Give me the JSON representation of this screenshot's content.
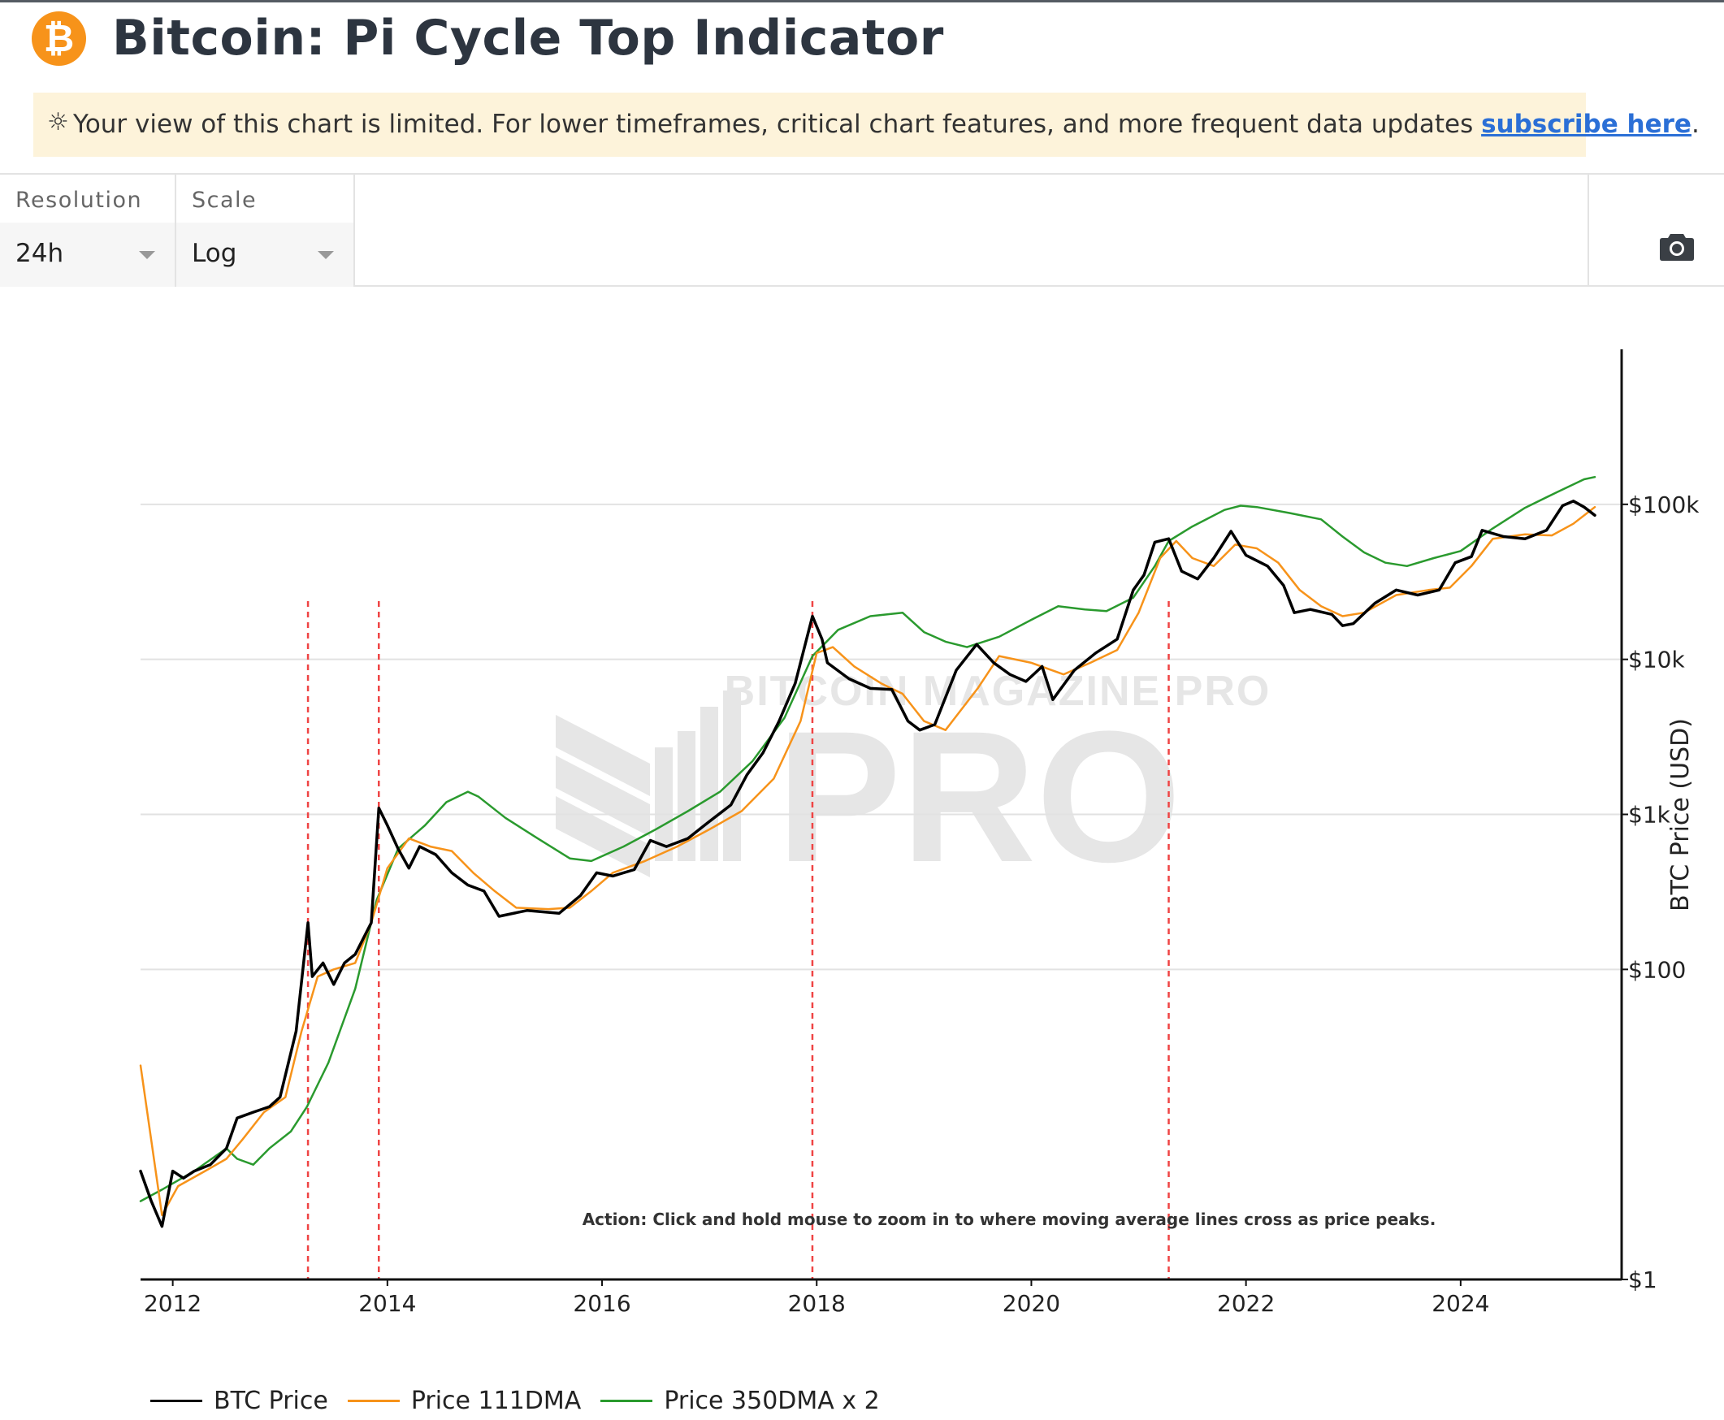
{
  "header": {
    "logo_glyph": "₿",
    "title": "Bitcoin: Pi Cycle Top Indicator",
    "brand_color": "#f7931a"
  },
  "banner": {
    "icon": "☼",
    "text": "Your view of this chart is limited. For lower timeframes, critical chart features, and more frequent data updates ",
    "link_text": "subscribe here",
    "suffix": "."
  },
  "controls": {
    "resolution": {
      "label": "Resolution",
      "value": "24h"
    },
    "scale": {
      "label": "Scale",
      "value": "Log"
    },
    "camera_icon": "camera-icon"
  },
  "chart_data": {
    "type": "line",
    "xlabel": "",
    "ylabel": "BTC Price (USD)",
    "y_scale": "log",
    "ylim": [
      1,
      1000000
    ],
    "y_tick_values": [
      1,
      100,
      1000,
      10000,
      100000
    ],
    "y_tick_labels": [
      "$1",
      "$100",
      "$1k",
      "$10k",
      "$100k"
    ],
    "x_tick_labels": [
      "2012",
      "2014",
      "2016",
      "2018",
      "2020",
      "2022",
      "2024"
    ],
    "xlim": [
      2011.7,
      2025.5
    ],
    "grid": true,
    "legend_position": "bottom-left",
    "annotation": "Action: Click and hold mouse to zoom in to where moving average lines cross as price peaks.",
    "watermark": "BITCOIN MAGAZINE PRO",
    "cross_events": [
      2013.26,
      2013.92,
      2017.96,
      2021.28
    ],
    "series": [
      {
        "name": "BTC Price",
        "color": "#000000",
        "x": [
          2011.7,
          2011.8,
          2011.9,
          2012.0,
          2012.1,
          2012.2,
          2012.35,
          2012.5,
          2012.6,
          2012.75,
          2012.9,
          2013.0,
          2013.15,
          2013.26,
          2013.3,
          2013.4,
          2013.5,
          2013.6,
          2013.7,
          2013.85,
          2013.92,
          2014.0,
          2014.1,
          2014.2,
          2014.3,
          2014.45,
          2014.6,
          2014.75,
          2014.9,
          2015.04,
          2015.3,
          2015.6,
          2015.8,
          2015.95,
          2016.1,
          2016.3,
          2016.45,
          2016.6,
          2016.8,
          2017.0,
          2017.2,
          2017.35,
          2017.5,
          2017.65,
          2017.8,
          2017.96,
          2018.05,
          2018.1,
          2018.3,
          2018.5,
          2018.7,
          2018.85,
          2018.96,
          2019.1,
          2019.3,
          2019.49,
          2019.65,
          2019.8,
          2019.95,
          2020.1,
          2020.2,
          2020.4,
          2020.6,
          2020.8,
          2020.95,
          2021.05,
          2021.15,
          2021.28,
          2021.4,
          2021.55,
          2021.7,
          2021.86,
          2022.0,
          2022.2,
          2022.35,
          2022.45,
          2022.6,
          2022.8,
          2022.9,
          2023.0,
          2023.2,
          2023.4,
          2023.6,
          2023.8,
          2023.95,
          2024.1,
          2024.2,
          2024.4,
          2024.6,
          2024.8,
          2024.95,
          2025.05,
          2025.15,
          2025.25
        ],
        "y": [
          5,
          3.2,
          2.2,
          5,
          4.5,
          5,
          5.5,
          7,
          11,
          12,
          13,
          15,
          40,
          200,
          90,
          110,
          80,
          110,
          125,
          200,
          1100,
          850,
          600,
          450,
          620,
          550,
          420,
          350,
          320,
          220,
          240,
          230,
          300,
          420,
          400,
          440,
          680,
          620,
          700,
          900,
          1150,
          1800,
          2500,
          4000,
          7000,
          19000,
          13500,
          9500,
          7500,
          6500,
          6400,
          4000,
          3500,
          3800,
          8500,
          12500,
          9500,
          8000,
          7200,
          9000,
          5500,
          8500,
          11000,
          13500,
          28000,
          35000,
          57000,
          60000,
          37000,
          33000,
          45000,
          67000,
          47000,
          40000,
          30000,
          20000,
          21000,
          19500,
          16500,
          17000,
          23000,
          28000,
          26000,
          28000,
          42000,
          46000,
          68000,
          62000,
          60000,
          68000,
          98000,
          105000,
          96000,
          85000
        ]
      },
      {
        "name": "Price 111DMA",
        "color": "#f7931a",
        "x": [
          2011.7,
          2011.9,
          2012.05,
          2012.3,
          2012.5,
          2012.65,
          2012.85,
          2013.05,
          2013.2,
          2013.35,
          2013.5,
          2013.7,
          2013.85,
          2014.0,
          2014.2,
          2014.4,
          2014.6,
          2014.8,
          2015.0,
          2015.2,
          2015.5,
          2015.7,
          2015.9,
          2016.1,
          2016.4,
          2016.7,
          2017.0,
          2017.3,
          2017.6,
          2017.85,
          2018.0,
          2018.15,
          2018.35,
          2018.6,
          2018.8,
          2019.0,
          2019.2,
          2019.5,
          2019.7,
          2020.0,
          2020.3,
          2020.55,
          2020.8,
          2021.0,
          2021.2,
          2021.35,
          2021.5,
          2021.7,
          2021.9,
          2022.1,
          2022.3,
          2022.5,
          2022.7,
          2022.9,
          2023.1,
          2023.4,
          2023.7,
          2023.9,
          2024.1,
          2024.3,
          2024.6,
          2024.85,
          2025.05,
          2025.25
        ],
        "y": [
          24,
          2.6,
          4,
          5,
          6,
          8,
          12,
          15,
          40,
          90,
          100,
          110,
          200,
          450,
          700,
          620,
          580,
          420,
          320,
          250,
          245,
          250,
          320,
          420,
          500,
          620,
          800,
          1050,
          1700,
          4000,
          11000,
          12000,
          9000,
          7000,
          6000,
          4000,
          3500,
          6500,
          10500,
          9500,
          8000,
          9500,
          11500,
          20000,
          45000,
          58000,
          45000,
          40000,
          55000,
          52000,
          42000,
          28000,
          22000,
          19000,
          20000,
          26000,
          28000,
          29000,
          40000,
          60000,
          64000,
          63000,
          75000,
          96000
        ]
      },
      {
        "name": "Price 350DMA x 2",
        "color": "#2a9a2e",
        "x": [
          2011.7,
          2011.9,
          2012.2,
          2012.5,
          2012.6,
          2012.75,
          2012.9,
          2013.1,
          2013.25,
          2013.45,
          2013.7,
          2013.9,
          2014.1,
          2014.35,
          2014.55,
          2014.75,
          2014.85,
          2015.1,
          2015.4,
          2015.7,
          2015.9,
          2016.2,
          2016.5,
          2016.8,
          2017.1,
          2017.4,
          2017.7,
          2017.96,
          2018.2,
          2018.5,
          2018.8,
          2019.0,
          2019.2,
          2019.4,
          2019.7,
          2020.0,
          2020.25,
          2020.5,
          2020.7,
          2020.95,
          2021.15,
          2021.28,
          2021.5,
          2021.8,
          2021.95,
          2022.1,
          2022.4,
          2022.7,
          2022.9,
          2023.1,
          2023.3,
          2023.5,
          2023.75,
          2024.0,
          2024.3,
          2024.6,
          2024.9,
          2025.15,
          2025.25
        ],
        "y": [
          3.2,
          3.8,
          5,
          7,
          6,
          5.5,
          7,
          9,
          13,
          25,
          75,
          280,
          600,
          850,
          1200,
          1400,
          1300,
          950,
          700,
          520,
          500,
          620,
          800,
          1050,
          1400,
          2200,
          4200,
          10500,
          15500,
          19000,
          20000,
          15000,
          13000,
          12000,
          14000,
          18000,
          22000,
          21000,
          20500,
          25000,
          40000,
          58000,
          72000,
          92000,
          98000,
          96000,
          88000,
          80000,
          62000,
          49000,
          42000,
          40000,
          45000,
          50000,
          70000,
          95000,
          120000,
          145000,
          150000
        ]
      }
    ]
  }
}
